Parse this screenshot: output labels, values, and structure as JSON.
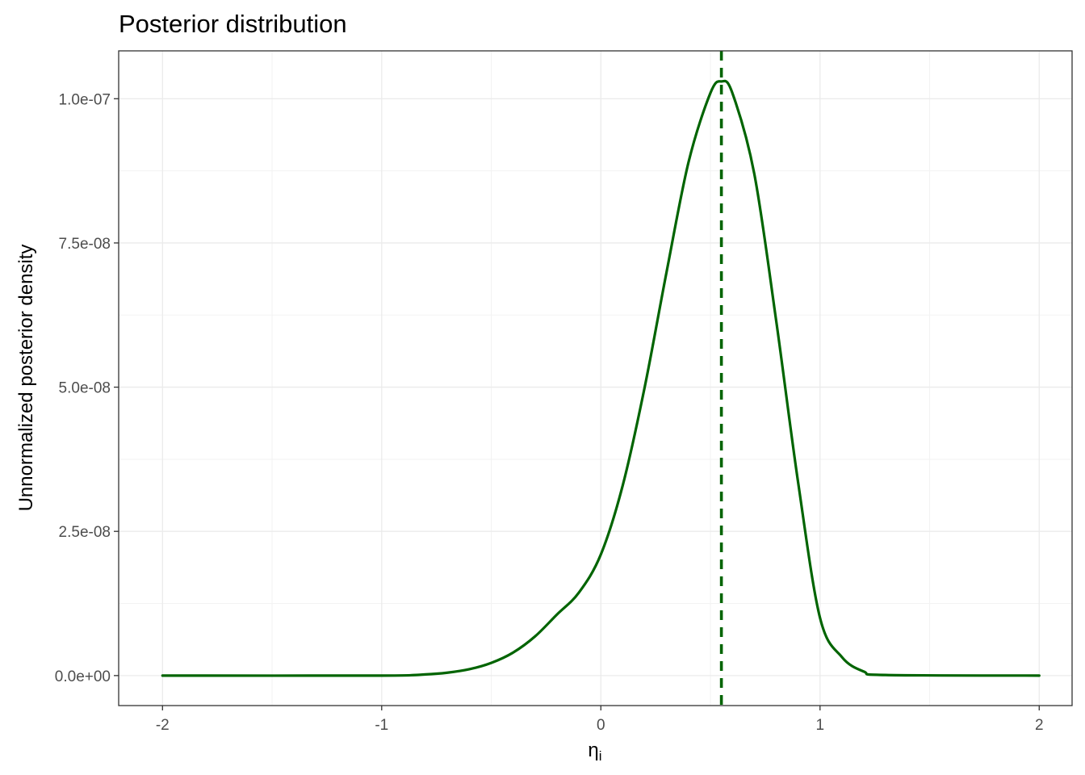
{
  "chart_data": {
    "type": "line",
    "title": "Posterior distribution",
    "xlabel": "η",
    "xlabel_subscript": "i",
    "ylabel": "Unnormalized posterior density",
    "xlim": [
      -2.2,
      2.15
    ],
    "ylim": [
      -5.2e-09,
      1.083e-07
    ],
    "x_ticks": [
      -2,
      -1,
      0,
      1,
      2
    ],
    "x_tick_labels": [
      "-2",
      "-1",
      "0",
      "1",
      "2"
    ],
    "x_minor_ticks": [
      -1.5,
      -0.5,
      0.5,
      1.5
    ],
    "y_ticks": [
      0,
      2.5e-08,
      5e-08,
      7.5e-08,
      1e-07
    ],
    "y_tick_labels": [
      "0.0e+00",
      "2.5e-08",
      "5.0e-08",
      "7.5e-08",
      "1.0e-07"
    ],
    "y_minor_ticks": [
      1.25e-08,
      3.75e-08,
      6.25e-08,
      8.75e-08
    ],
    "grid": true,
    "series": [
      {
        "color": "#006400",
        "x": [
          -2.0,
          -1.0,
          -0.8,
          -0.7,
          -0.6,
          -0.5,
          -0.4,
          -0.3,
          -0.2,
          -0.1,
          0.0,
          0.1,
          0.2,
          0.3,
          0.4,
          0.5,
          0.55,
          0.6,
          0.7,
          0.8,
          0.9,
          1.0,
          1.1,
          1.2,
          1.3,
          2.0
        ],
        "y": [
          0,
          0,
          2e-10,
          5e-10,
          1.1e-09,
          2.2e-09,
          4e-09,
          6.8e-09,
          1.06e-08,
          1.44e-08,
          2.1e-08,
          3.3e-08,
          5e-08,
          7e-08,
          8.9e-08,
          1.01e-07,
          1.03e-07,
          1.01e-07,
          8.7e-08,
          6.15e-08,
          3.35e-08,
          1e-08,
          3.2e-09,
          7e-10,
          1e-10,
          0
        ]
      }
    ],
    "reference_line": {
      "x": 0.55,
      "style": "dashed",
      "color": "#006400"
    }
  }
}
